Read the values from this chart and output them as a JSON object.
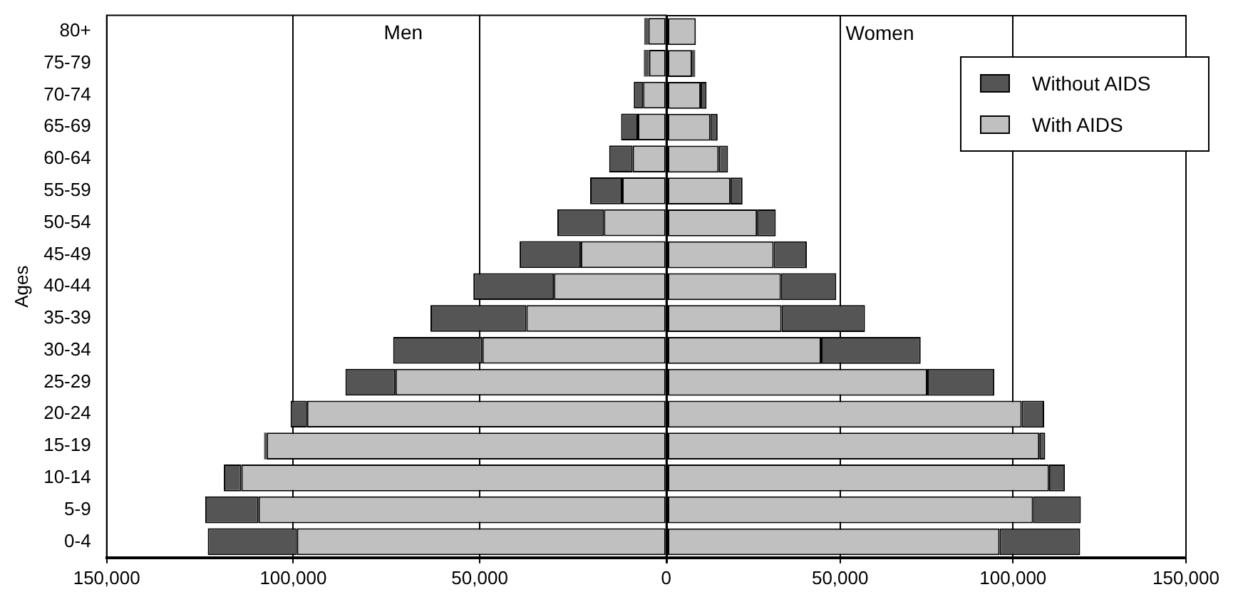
{
  "chart_data": [
    {
      "type": "bar",
      "orientation": "horizontal",
      "stacked": true,
      "ylabel": "Ages",
      "categories": [
        "80+",
        "75-79",
        "70-74",
        "65-69",
        "60-64",
        "55-59",
        "50-54",
        "45-49",
        "40-44",
        "35-39",
        "30-34",
        "25-29",
        "20-24",
        "15-19",
        "10-14",
        "5-9",
        "0-4"
      ],
      "series": [
        {
          "color": "#c0c0c0",
          "values": [
            4800,
            4600,
            6200,
            7600,
            9000,
            11800,
            16700,
            22900,
            30100,
            37500,
            49300,
            72600,
            96300,
            107100,
            113900,
            109300,
            99000
          ]
        },
        {
          "color": "#555555",
          "values": [
            1100,
            1400,
            2500,
            4500,
            6300,
            8600,
            12500,
            16400,
            21600,
            25700,
            23900,
            13400,
            4400,
            700,
            4700,
            14300,
            23900
          ]
        }
      ],
      "xlim": [
        150000,
        0
      ],
      "xticks": [
        {
          "value": 150000,
          "label": "150,000"
        },
        {
          "value": 100000,
          "label": "100,000"
        },
        {
          "value": 50000,
          "label": "50,000"
        },
        0
      ],
      "grid": "x",
      "annotations": [
        "Men"
      ]
    },
    {
      "type": "bar",
      "orientation": "horizontal",
      "stacked": true,
      "series": [
        {
          "name": "With AIDS",
          "color": "#c0c0c0",
          "values": [
            8300,
            7200,
            9700,
            12500,
            14900,
            18300,
            26000,
            30800,
            32900,
            33100,
            44500,
            75200,
            102500,
            107600,
            110400,
            105800,
            96100
          ]
        },
        {
          "name": "Without AIDS",
          "color": "#555555",
          "values": [
            null,
            900,
            1700,
            2100,
            2700,
            3500,
            5400,
            9600,
            16000,
            24100,
            28800,
            19400,
            6500,
            1700,
            4600,
            13800,
            23300
          ]
        }
      ],
      "xlim": [
        0,
        150000
      ],
      "xticks": [
        {
          "value": 0,
          "label": null
        },
        {
          "value": 50000,
          "label": "50,000"
        },
        {
          "value": 100000,
          "label": "100,000"
        },
        {
          "value": 150000,
          "label": "150,000"
        }
      ],
      "grid": "x",
      "legend": "top right",
      "tick_labels": "x",
      "annotations": [
        "Women"
      ]
    }
  ]
}
